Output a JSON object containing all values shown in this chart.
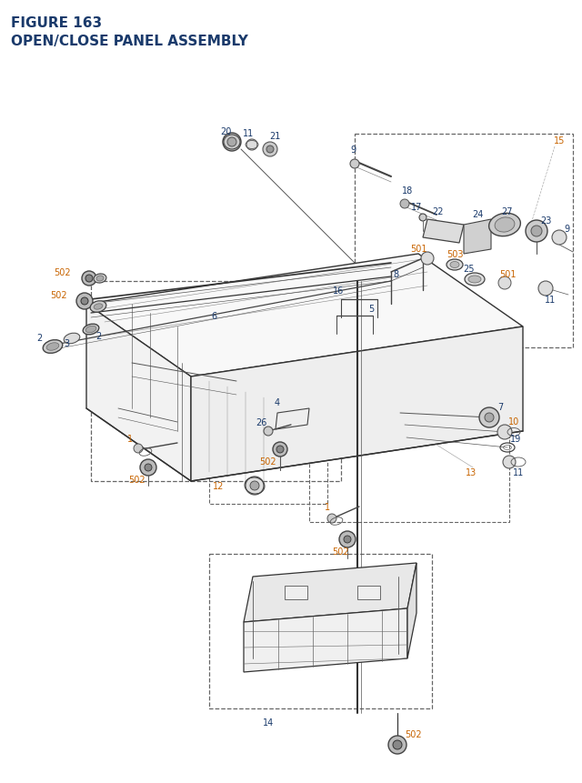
{
  "title_line1": "FIGURE 163",
  "title_line2": "OPEN/CLOSE PANEL ASSEMBLY",
  "title_color": "#1a3a6b",
  "title_fontsize": 11,
  "background_color": "#ffffff",
  "fig_w": 6.4,
  "fig_h": 8.62,
  "dpi": 100
}
